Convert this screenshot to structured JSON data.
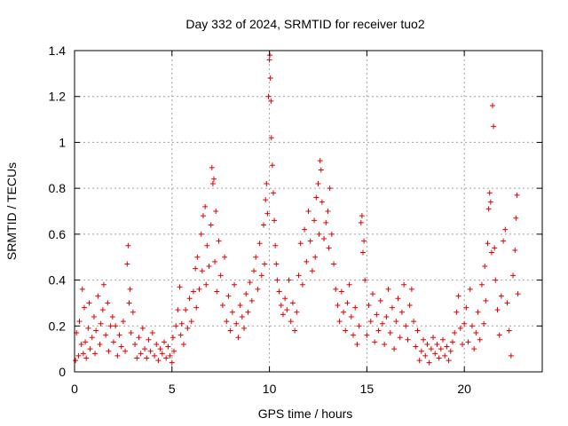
{
  "colors": {
    "series": "#e00000",
    "axis": "#000000",
    "grid": "#a0a0a0",
    "background": "#ffffff"
  },
  "chart_data": {
    "type": "scatter",
    "title": "Day 332 of 2024, SRMTID for receiver tuo2",
    "xlabel": "GPS time / hours",
    "ylabel": "SRMTID / TECUs",
    "xlim": [
      0,
      24
    ],
    "ylim": [
      0,
      1.4
    ],
    "xticks": [
      0,
      5,
      10,
      15,
      20
    ],
    "xtick_labels": [
      "0",
      "5",
      "10",
      "15",
      "20"
    ],
    "yticks": [
      0,
      0.2,
      0.4,
      0.6,
      0.8,
      1,
      1.2,
      1.4
    ],
    "ytick_labels": [
      "0",
      "0.2",
      "0.4",
      "0.6",
      "0.8",
      "1",
      "1.2",
      "1.4"
    ],
    "grid": true,
    "marker": "plus",
    "series": [
      {
        "name": "SRMTID",
        "points": [
          [
            0.05,
            0.05
          ],
          [
            0.1,
            0.17
          ],
          [
            0.2,
            0.07
          ],
          [
            0.25,
            0.22
          ],
          [
            0.35,
            0.12
          ],
          [
            0.4,
            0.36
          ],
          [
            0.45,
            0.08
          ],
          [
            0.5,
            0.28
          ],
          [
            0.55,
            0.13
          ],
          [
            0.6,
            0.06
          ],
          [
            0.7,
            0.19
          ],
          [
            0.75,
            0.3
          ],
          [
            0.8,
            0.1
          ],
          [
            0.9,
            0.15
          ],
          [
            1.0,
            0.24
          ],
          [
            1.05,
            0.08
          ],
          [
            1.1,
            0.18
          ],
          [
            1.2,
            0.33
          ],
          [
            1.3,
            0.12
          ],
          [
            1.35,
            0.21
          ],
          [
            1.45,
            0.27
          ],
          [
            1.5,
            0.38
          ],
          [
            1.6,
            0.16
          ],
          [
            1.7,
            0.3
          ],
          [
            1.75,
            0.09
          ],
          [
            1.85,
            0.2
          ],
          [
            1.95,
            0.24
          ],
          [
            2.0,
            0.13
          ],
          [
            2.1,
            0.2
          ],
          [
            2.2,
            0.07
          ],
          [
            2.3,
            0.16
          ],
          [
            2.4,
            0.11
          ],
          [
            2.5,
            0.22
          ],
          [
            2.6,
            0.09
          ],
          [
            2.7,
            0.47
          ],
          [
            2.75,
            0.55
          ],
          [
            2.8,
            0.3
          ],
          [
            2.85,
            0.36
          ],
          [
            2.9,
            0.17
          ],
          [
            3.0,
            0.26
          ],
          [
            3.1,
            0.12
          ],
          [
            3.2,
            0.06
          ],
          [
            3.3,
            0.15
          ],
          [
            3.4,
            0.08
          ],
          [
            3.5,
            0.19
          ],
          [
            3.6,
            0.1
          ],
          [
            3.7,
            0.06
          ],
          [
            3.8,
            0.14
          ],
          [
            3.9,
            0.09
          ],
          [
            4.0,
            0.17
          ],
          [
            4.1,
            0.07
          ],
          [
            4.2,
            0.12
          ],
          [
            4.3,
            0.05
          ],
          [
            4.4,
            0.1
          ],
          [
            4.5,
            0.08
          ],
          [
            4.6,
            0.13
          ],
          [
            4.7,
            0.06
          ],
          [
            4.8,
            0.11
          ],
          [
            4.9,
            0.07
          ],
          [
            5.0,
            0.04
          ],
          [
            5.05,
            0.15
          ],
          [
            5.1,
            0.09
          ],
          [
            5.2,
            0.2
          ],
          [
            5.3,
            0.27
          ],
          [
            5.4,
            0.37
          ],
          [
            5.45,
            0.16
          ],
          [
            5.5,
            0.21
          ],
          [
            5.6,
            0.12
          ],
          [
            5.7,
            0.27
          ],
          [
            5.8,
            0.19
          ],
          [
            5.9,
            0.32
          ],
          [
            6.0,
            0.22
          ],
          [
            6.1,
            0.35
          ],
          [
            6.2,
            0.45
          ],
          [
            6.25,
            0.28
          ],
          [
            6.3,
            0.5
          ],
          [
            6.4,
            0.36
          ],
          [
            6.5,
            0.6
          ],
          [
            6.55,
            0.44
          ],
          [
            6.6,
            0.68
          ],
          [
            6.7,
            0.72
          ],
          [
            6.75,
            0.38
          ],
          [
            6.8,
            0.55
          ],
          [
            6.9,
            0.46
          ],
          [
            7.0,
            0.64
          ],
          [
            7.05,
            0.89
          ],
          [
            7.1,
            0.82
          ],
          [
            7.15,
            0.84
          ],
          [
            7.2,
            0.48
          ],
          [
            7.25,
            0.7
          ],
          [
            7.3,
            0.35
          ],
          [
            7.4,
            0.57
          ],
          [
            7.5,
            0.42
          ],
          [
            7.6,
            0.29
          ],
          [
            7.7,
            0.5
          ],
          [
            7.8,
            0.22
          ],
          [
            7.9,
            0.33
          ],
          [
            8.0,
            0.18
          ],
          [
            8.1,
            0.26
          ],
          [
            8.2,
            0.38
          ],
          [
            8.3,
            0.21
          ],
          [
            8.4,
            0.15
          ],
          [
            8.5,
            0.29
          ],
          [
            8.6,
            0.24
          ],
          [
            8.7,
            0.19
          ],
          [
            8.8,
            0.34
          ],
          [
            8.9,
            0.26
          ],
          [
            9.0,
            0.39
          ],
          [
            9.1,
            0.31
          ],
          [
            9.2,
            0.44
          ],
          [
            9.3,
            0.5
          ],
          [
            9.4,
            0.36
          ],
          [
            9.5,
            0.56
          ],
          [
            9.6,
            0.42
          ],
          [
            9.7,
            0.64
          ],
          [
            9.75,
            0.47
          ],
          [
            9.8,
            0.75
          ],
          [
            9.85,
            0.82
          ],
          [
            9.9,
            0.69
          ],
          [
            9.95,
            1.2
          ],
          [
            10.0,
            1.36
          ],
          [
            10.02,
            1.38
          ],
          [
            10.05,
            1.28
          ],
          [
            10.08,
            1.18
          ],
          [
            10.1,
            1.02
          ],
          [
            10.15,
            0.9
          ],
          [
            10.2,
            0.78
          ],
          [
            10.25,
            0.66
          ],
          [
            10.3,
            0.55
          ],
          [
            10.35,
            0.47
          ],
          [
            10.4,
            0.4
          ],
          [
            10.5,
            0.35
          ],
          [
            10.6,
            0.29
          ],
          [
            10.7,
            0.25
          ],
          [
            10.8,
            0.32
          ],
          [
            10.9,
            0.27
          ],
          [
            11.0,
            0.4
          ],
          [
            11.1,
            0.22
          ],
          [
            11.2,
            0.3
          ],
          [
            11.3,
            0.18
          ],
          [
            11.4,
            0.26
          ],
          [
            11.5,
            0.42
          ],
          [
            11.6,
            0.56
          ],
          [
            11.7,
            0.38
          ],
          [
            11.8,
            0.62
          ],
          [
            11.9,
            0.48
          ],
          [
            12.0,
            0.7
          ],
          [
            12.1,
            0.57
          ],
          [
            12.2,
            0.44
          ],
          [
            12.3,
            0.66
          ],
          [
            12.35,
            0.5
          ],
          [
            12.4,
            0.76
          ],
          [
            12.5,
            0.82
          ],
          [
            12.55,
            0.6
          ],
          [
            12.6,
            0.92
          ],
          [
            12.65,
            0.88
          ],
          [
            12.7,
            0.74
          ],
          [
            12.8,
            0.58
          ],
          [
            12.9,
            0.65
          ],
          [
            13.0,
            0.7
          ],
          [
            13.05,
            0.54
          ],
          [
            13.1,
            0.8
          ],
          [
            13.2,
            0.6
          ],
          [
            13.3,
            0.47
          ],
          [
            13.4,
            0.36
          ],
          [
            13.5,
            0.29
          ],
          [
            13.6,
            0.22
          ],
          [
            13.7,
            0.35
          ],
          [
            13.8,
            0.26
          ],
          [
            13.9,
            0.18
          ],
          [
            14.0,
            0.3
          ],
          [
            14.1,
            0.38
          ],
          [
            14.2,
            0.24
          ],
          [
            14.3,
            0.16
          ],
          [
            14.4,
            0.28
          ],
          [
            14.5,
            0.12
          ],
          [
            14.6,
            0.2
          ],
          [
            14.7,
            0.65
          ],
          [
            14.75,
            0.68
          ],
          [
            14.8,
            0.52
          ],
          [
            14.85,
            0.57
          ],
          [
            14.9,
            0.4
          ],
          [
            15.0,
            0.16
          ],
          [
            15.1,
            0.29
          ],
          [
            15.2,
            0.22
          ],
          [
            15.3,
            0.34
          ],
          [
            15.4,
            0.13
          ],
          [
            15.5,
            0.25
          ],
          [
            15.6,
            0.18
          ],
          [
            15.7,
            0.31
          ],
          [
            15.8,
            0.21
          ],
          [
            15.9,
            0.12
          ],
          [
            16.0,
            0.24
          ],
          [
            16.1,
            0.36
          ],
          [
            16.2,
            0.17
          ],
          [
            16.3,
            0.28
          ],
          [
            16.4,
            0.1
          ],
          [
            16.5,
            0.22
          ],
          [
            16.6,
            0.32
          ],
          [
            16.7,
            0.15
          ],
          [
            16.8,
            0.26
          ],
          [
            16.9,
            0.38
          ],
          [
            17.0,
            0.2
          ],
          [
            17.1,
            0.14
          ],
          [
            17.2,
            0.29
          ],
          [
            17.3,
            0.36
          ],
          [
            17.4,
            0.22
          ],
          [
            17.5,
            0.11
          ],
          [
            17.6,
            0.18
          ],
          [
            17.7,
            0.05
          ],
          [
            17.8,
            0.09
          ],
          [
            17.9,
            0.14
          ],
          [
            18.0,
            0.07
          ],
          [
            18.1,
            0.12
          ],
          [
            18.2,
            0.04
          ],
          [
            18.3,
            0.1
          ],
          [
            18.4,
            0.15
          ],
          [
            18.5,
            0.08
          ],
          [
            18.6,
            0.12
          ],
          [
            18.7,
            0.06
          ],
          [
            18.8,
            0.1
          ],
          [
            18.9,
            0.14
          ],
          [
            19.0,
            0.07
          ],
          [
            19.1,
            0.11
          ],
          [
            19.2,
            0.05
          ],
          [
            19.3,
            0.09
          ],
          [
            19.4,
            0.13
          ],
          [
            19.5,
            0.17
          ],
          [
            19.6,
            0.26
          ],
          [
            19.7,
            0.33
          ],
          [
            19.8,
            0.19
          ],
          [
            19.9,
            0.12
          ],
          [
            20.0,
            0.21
          ],
          [
            20.1,
            0.28
          ],
          [
            20.2,
            0.13
          ],
          [
            20.3,
            0.36
          ],
          [
            20.4,
            0.2
          ],
          [
            20.5,
            0.1
          ],
          [
            20.6,
            0.17
          ],
          [
            20.7,
            0.26
          ],
          [
            20.8,
            0.14
          ],
          [
            20.9,
            0.38
          ],
          [
            21.0,
            0.21
          ],
          [
            21.05,
            0.46
          ],
          [
            21.1,
            0.31
          ],
          [
            21.2,
            0.56
          ],
          [
            21.25,
            0.71
          ],
          [
            21.3,
            0.78
          ],
          [
            21.35,
            0.74
          ],
          [
            21.4,
            0.52
          ],
          [
            21.45,
            1.16
          ],
          [
            21.5,
            1.07
          ],
          [
            21.55,
            0.54
          ],
          [
            21.6,
            0.4
          ],
          [
            21.7,
            0.27
          ],
          [
            21.8,
            0.16
          ],
          [
            21.9,
            0.33
          ],
          [
            22.0,
            0.57
          ],
          [
            22.1,
            0.62
          ],
          [
            22.2,
            0.3
          ],
          [
            22.3,
            0.18
          ],
          [
            22.4,
            0.07
          ],
          [
            22.5,
            0.42
          ],
          [
            22.6,
            0.53
          ],
          [
            22.65,
            0.67
          ],
          [
            22.7,
            0.77
          ],
          [
            22.75,
            0.34
          ]
        ]
      }
    ]
  }
}
